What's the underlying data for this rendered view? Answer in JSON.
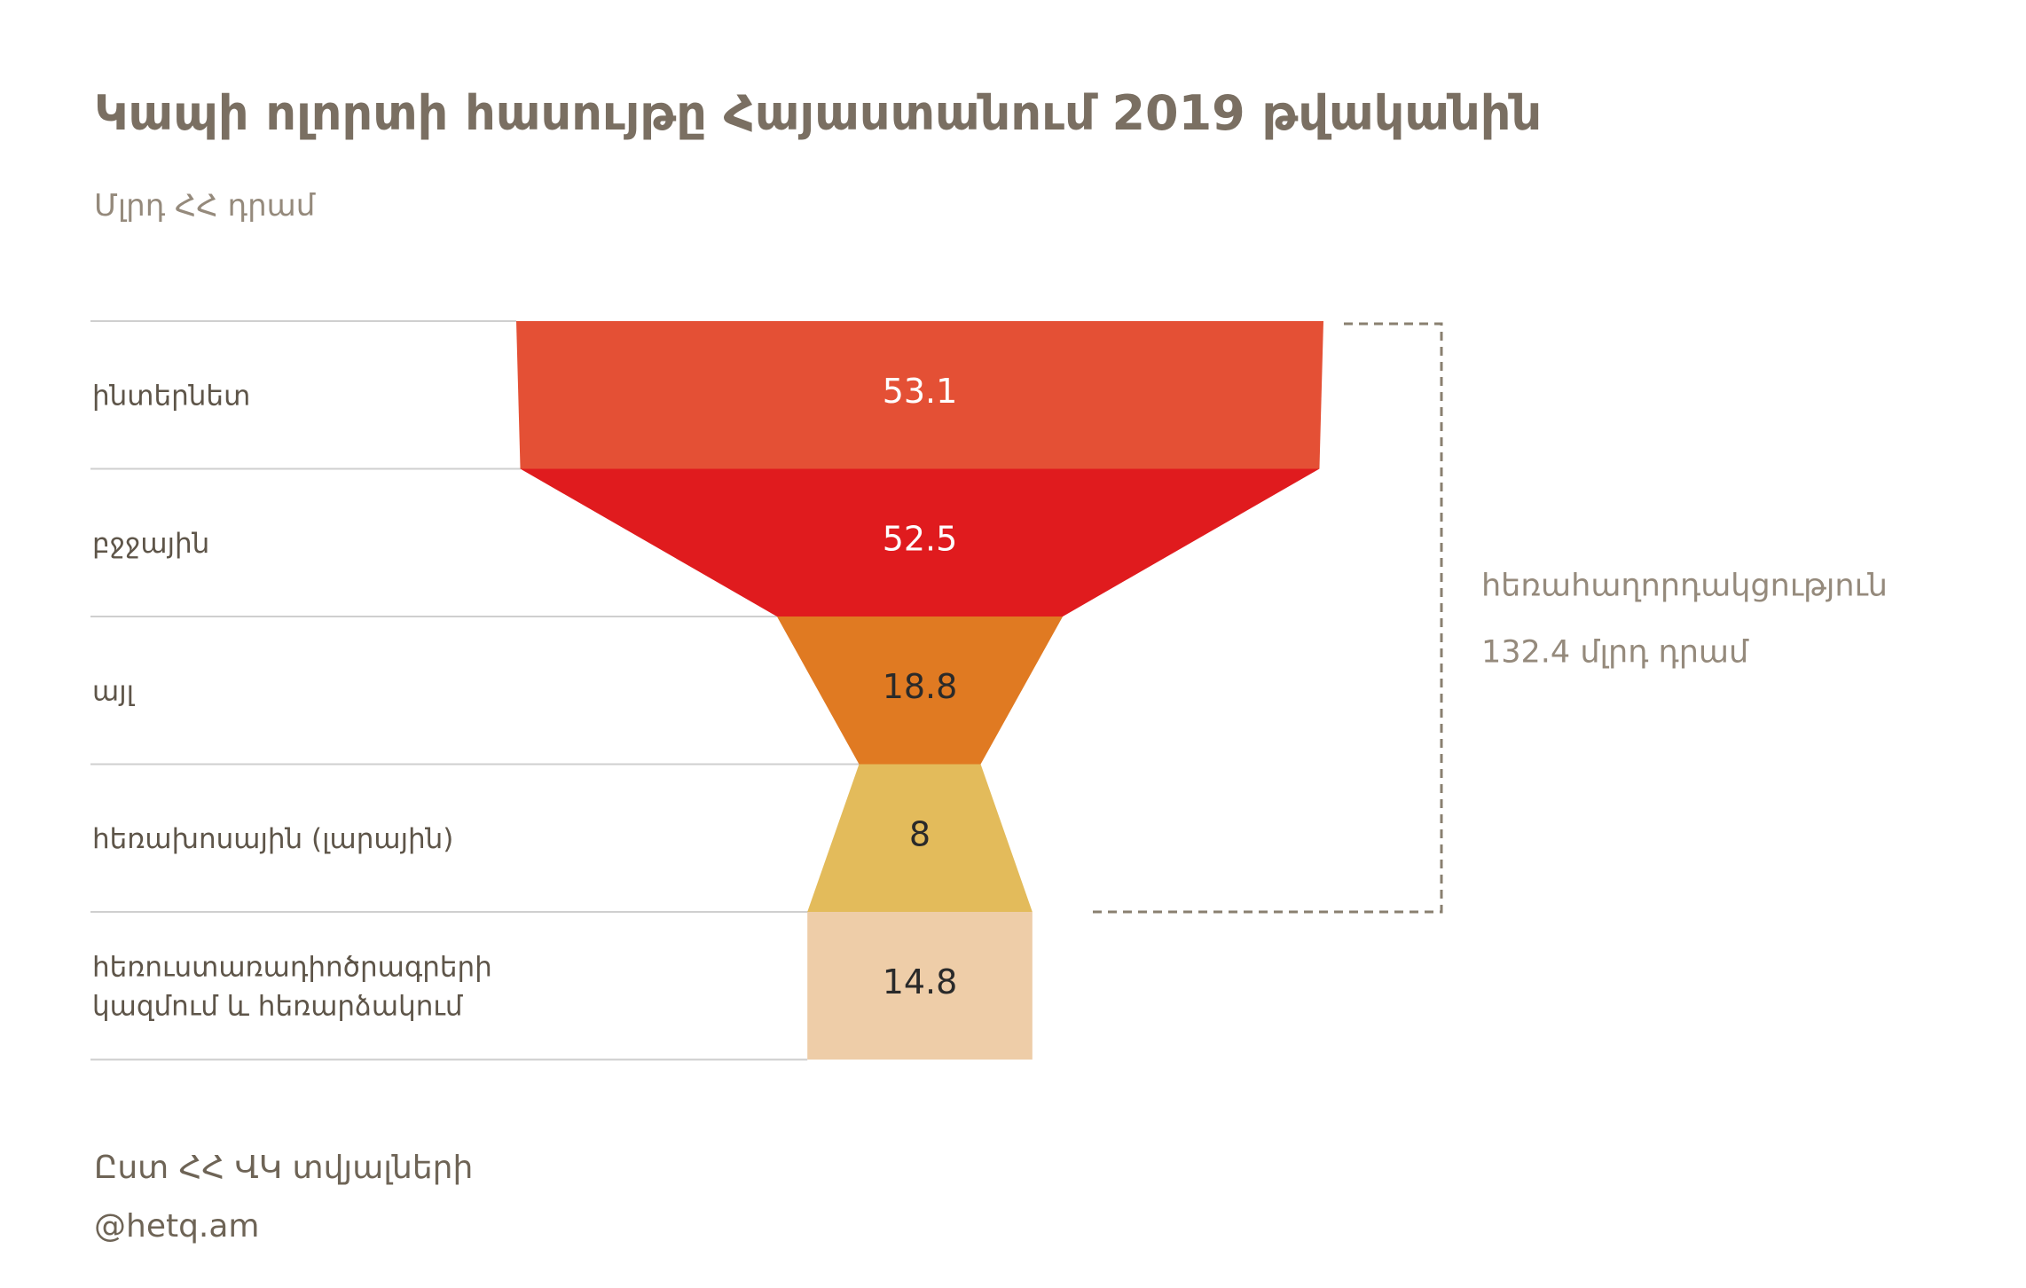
{
  "chart_data": {
    "type": "funnel",
    "title": "Կապի ոլորտի հասույթը Հայաստանում 2019 թվականին",
    "subtitle": "Մլրդ ՀՀ դրամ",
    "categories": [
      "ինտերնետ",
      "բջջային",
      "այլ",
      "հեռախոսային (լարային)",
      "հեռուստառադիոծրագրերի կազմում և հեռարձակում"
    ],
    "category_lines": [
      [
        "ինտերնետ"
      ],
      [
        "բջջային"
      ],
      [
        "այլ"
      ],
      [
        "հեռախոսային (լարային)"
      ],
      [
        "հեռուստառադիոծրագրերի",
        "կազմում և հեռարձակում"
      ]
    ],
    "values": [
      53.1,
      52.5,
      18.8,
      8,
      14.8
    ],
    "value_labels": [
      "53.1",
      "52.5",
      "18.8",
      "8",
      "14.8"
    ],
    "colors": [
      "#e45035",
      "#e01b1e",
      "#e07a22",
      "#e3bb5b",
      "#eecda8"
    ],
    "label_colors": [
      "#ffffff",
      "#ffffff",
      "#2a2a2a",
      "#2a2a2a",
      "#2a2a2a"
    ],
    "annotation": {
      "label": "հեռահաղորդակցություն",
      "value_text": "132.4 մլրդ դրամ",
      "covers_categories": [
        0,
        1,
        2,
        3
      ]
    },
    "source": "Ըստ ՀՀ ՎԿ տվյալների",
    "credit": "@hetq.am"
  }
}
